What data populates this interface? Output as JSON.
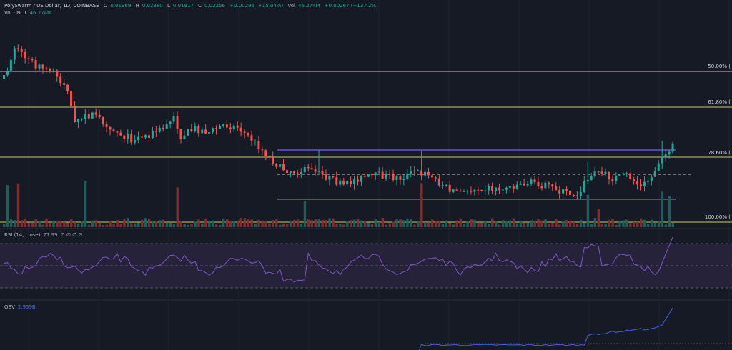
{
  "legend": {
    "symbol": "PolySwarm / US Dollar, 1D, COINBASE",
    "o_label": "O",
    "o_value": "0.01969",
    "h_label": "H",
    "h_value": "0.02380",
    "l_label": "L",
    "l_value": "0.01917",
    "c_label": "C",
    "c_value": "0.02256",
    "change": "+0.00295 (+15.04%)",
    "vol_label": "Vol",
    "vol_value": "46.274M",
    "vol_change": "+0.00267 (+13.42%)"
  },
  "volume_legend": {
    "label": "Vol · NCT",
    "value": "46.274M"
  },
  "rsi_legend": {
    "label": "RSI (14, close)",
    "value": "77.99",
    "extras": "∅ ∅ ∅ ∅"
  },
  "obv_legend": {
    "label": "OBV",
    "value": "2.959B"
  },
  "fib_levels": [
    {
      "label": "50.00% (",
      "level": 50.0
    },
    {
      "label": "61.80% (",
      "level": 61.8
    },
    {
      "label": "78.60% (",
      "level": 78.6
    },
    {
      "label": "100.00% (",
      "level": 100.0
    }
  ],
  "colors": {
    "background": "#161a25",
    "up": "#26a69a",
    "down": "#ef5350",
    "fib_line": "#c9c96a",
    "range_line": "#7b5cff",
    "rsi_line": "#7e57c2",
    "rsi_band": "#2a2440",
    "obv_line": "#3f63e0"
  },
  "chart_data": {
    "type": "candlestick",
    "symbol": "NCT/USD",
    "timeframe": "1D",
    "exchange": "COINBASE",
    "last_candle": {
      "open": 0.01969,
      "high": 0.0238,
      "low": 0.01917,
      "close": 0.02256
    },
    "fib_retracement": [
      50.0,
      61.8,
      78.6,
      100.0
    ],
    "rsi": {
      "period": 14,
      "source": "close",
      "last": 77.99
    },
    "obv": {
      "last": 2.959,
      "unit": "B"
    },
    "volume_last": {
      "value": 46.274,
      "unit": "M"
    }
  }
}
